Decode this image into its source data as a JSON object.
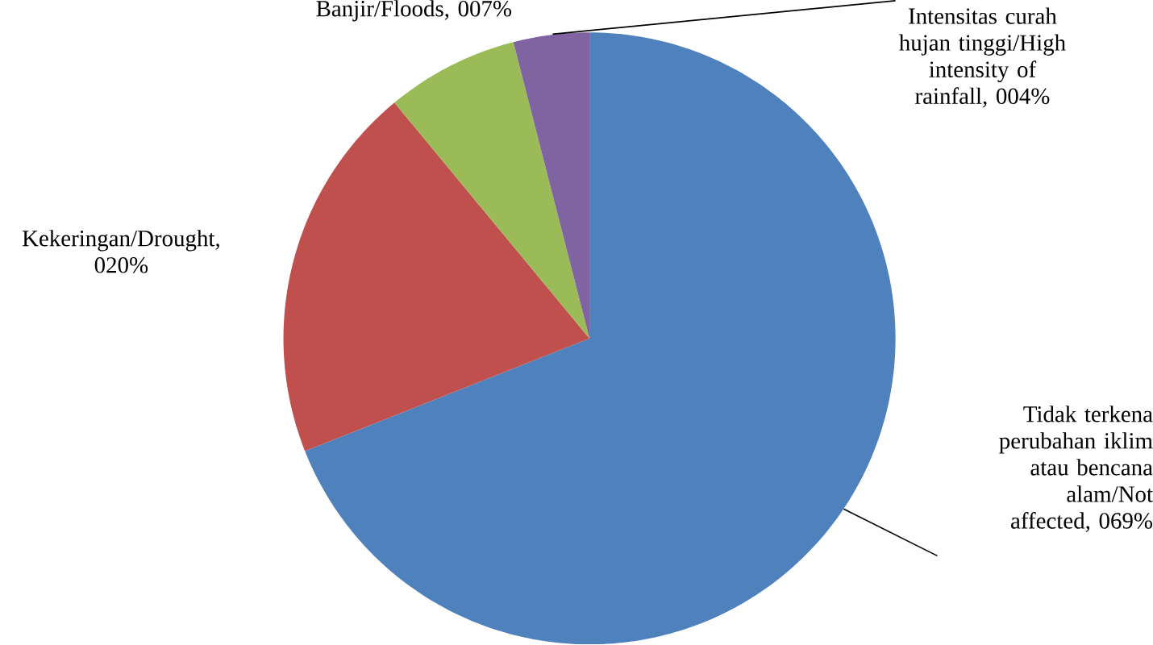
{
  "chart_data": {
    "type": "pie",
    "categories": [
      "Tidak terkena perubahan iklim atau bencana alam/Not affected, 069%",
      "Kekeringan/Drought, 020%",
      "Banjir/Floods, 007%",
      "Intensitas curah hujan tinggi/High intensity of rainfall, 004%"
    ],
    "values": [
      69,
      20,
      7,
      4
    ],
    "colors": [
      "#4f81bd",
      "#c0504d",
      "#9bbb59",
      "#8064a2"
    ]
  }
}
